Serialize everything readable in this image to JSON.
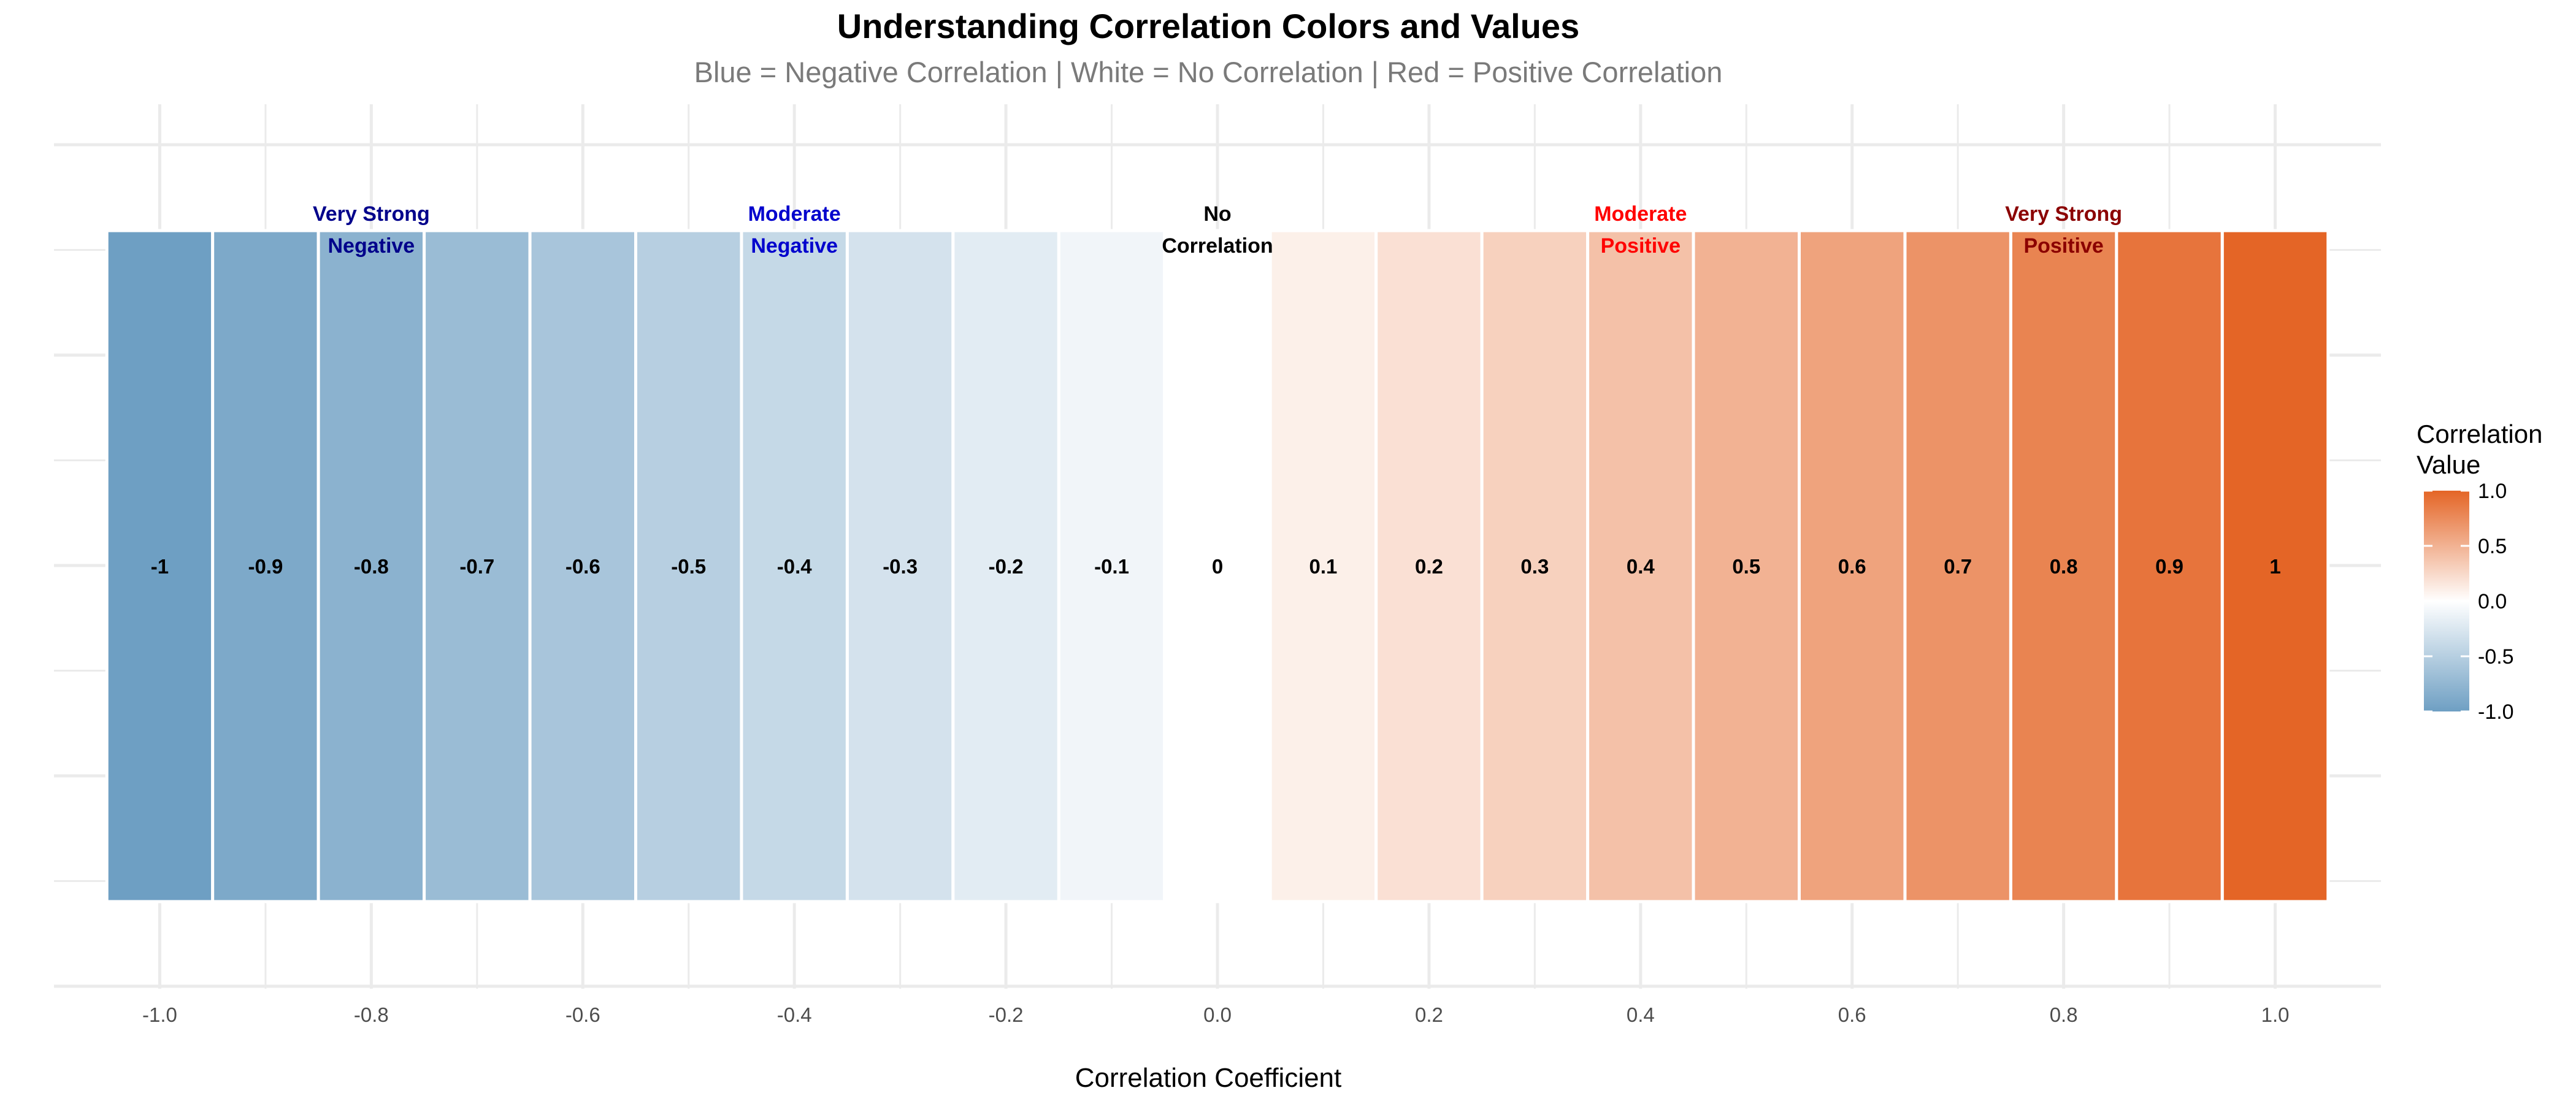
{
  "chart_data": {
    "type": "bar",
    "title": "Understanding Correlation Colors and Values",
    "subtitle": "Blue = Negative Correlation | White = No Correlation | Red = Positive Correlation",
    "xlabel": "Correlation Coefficient",
    "ylabel": "",
    "xlim": [
      -1.1,
      1.1
    ],
    "x_ticks": [
      "-1.0",
      "-0.8",
      "-0.6",
      "-0.4",
      "-0.2",
      "0.0",
      "0.2",
      "0.4",
      "0.6",
      "0.8",
      "1.0"
    ],
    "grid": true,
    "categories": [
      -1,
      -0.9,
      -0.8,
      -0.7,
      -0.6,
      -0.5,
      -0.4,
      -0.3,
      -0.2,
      -0.1,
      0,
      0.1,
      0.2,
      0.3,
      0.4,
      0.5,
      0.6,
      0.7,
      0.8,
      0.9,
      1
    ],
    "labels": [
      "-1",
      "-0.9",
      "-0.8",
      "-0.7",
      "-0.6",
      "-0.5",
      "-0.4",
      "-0.3",
      "-0.2",
      "-0.1",
      "0",
      "0.1",
      "0.2",
      "0.3",
      "0.4",
      "0.5",
      "0.6",
      "0.7",
      "0.8",
      "0.9",
      "1"
    ],
    "annotations": [
      {
        "x": -0.8,
        "lines": [
          "Very Strong",
          "Negative"
        ],
        "color": "#00008b"
      },
      {
        "x": -0.4,
        "lines": [
          "Moderate",
          "Negative"
        ],
        "color": "#0000cd"
      },
      {
        "x": 0.0,
        "lines": [
          "No",
          "Correlation"
        ],
        "color": "#000000"
      },
      {
        "x": 0.4,
        "lines": [
          "Moderate",
          "Positive"
        ],
        "color": "#ff0000"
      },
      {
        "x": 0.8,
        "lines": [
          "Very Strong",
          "Positive"
        ],
        "color": "#8b0000"
      }
    ],
    "color_scale": {
      "low": "#6e9fc3",
      "mid": "#ffffff",
      "high": "#e46526"
    },
    "legend": {
      "title_lines": [
        "Correlation",
        "Value"
      ],
      "position": "right",
      "ticks": [
        "1.0",
        "0.5",
        "0.0",
        "-0.5",
        "-1.0"
      ]
    }
  }
}
